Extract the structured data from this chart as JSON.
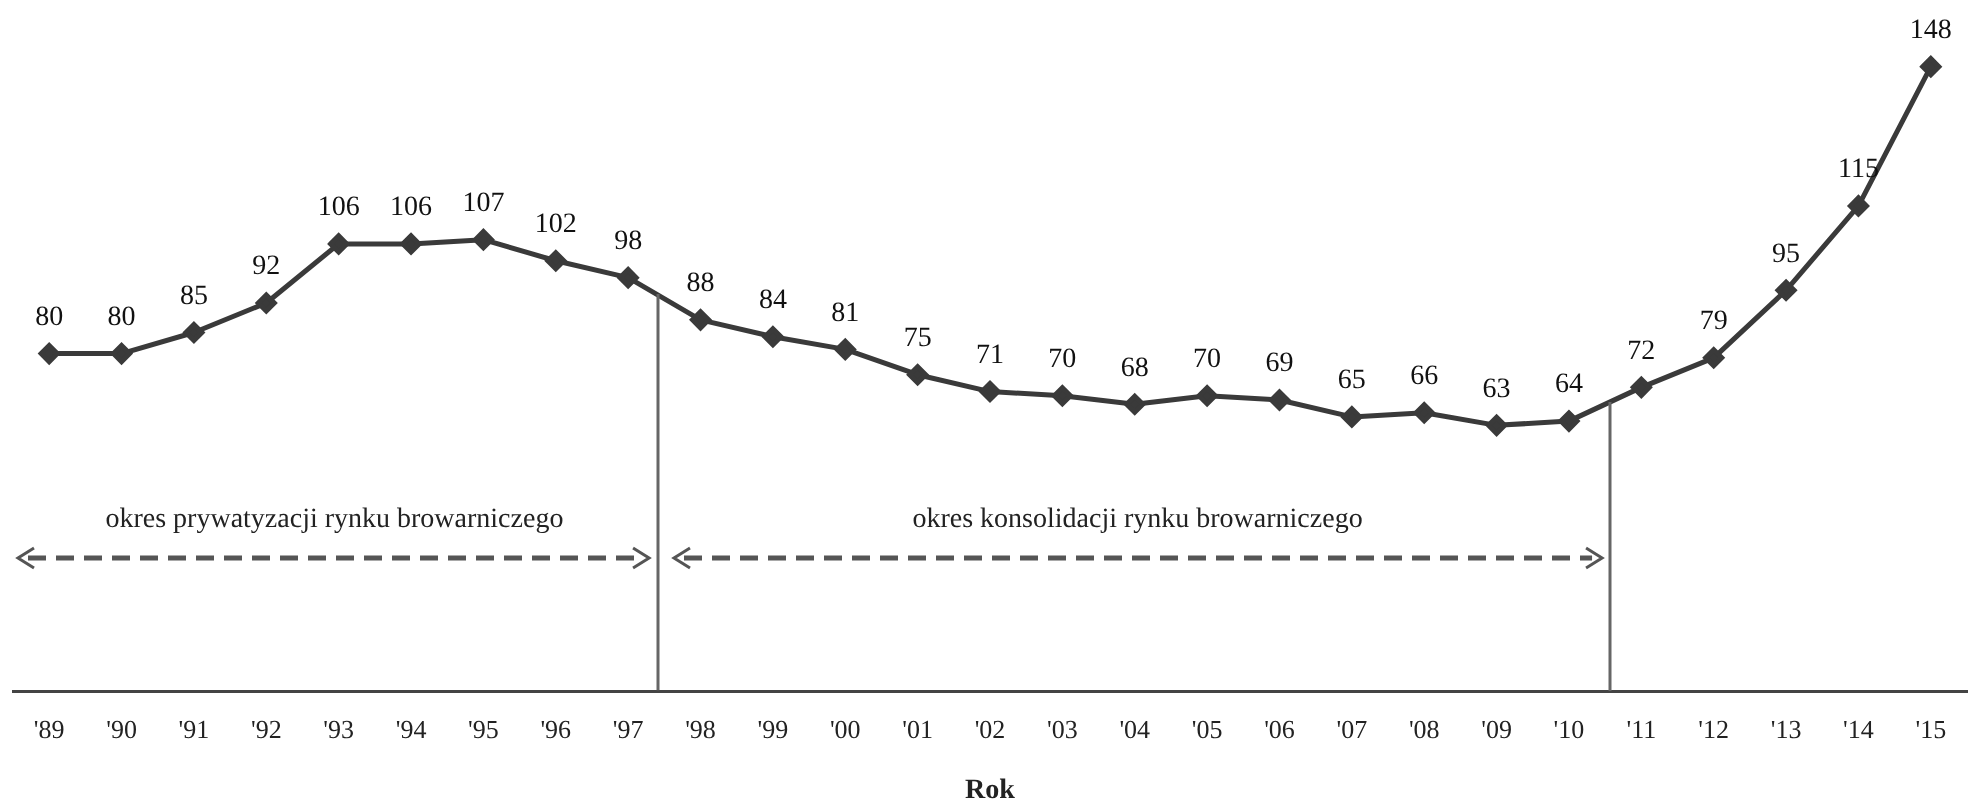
{
  "chart_data": {
    "type": "line",
    "xlabel": "Rok",
    "categories": [
      "'89",
      "'90",
      "'91",
      "'92",
      "'93",
      "'94",
      "'95",
      "'96",
      "'97",
      "'98",
      "'99",
      "'00",
      "'01",
      "'02",
      "'03",
      "'04",
      "'05",
      "'06",
      "'07",
      "'08",
      "'09",
      "'10",
      "'11",
      "'12",
      "'13",
      "'14",
      "'15"
    ],
    "series": [
      {
        "color": "#3a3a3a",
        "values": [
          80,
          80,
          85,
          92,
          106,
          106,
          107,
          102,
          98,
          88,
          84,
          81,
          75,
          71,
          70,
          68,
          70,
          69,
          65,
          66,
          63,
          64,
          72,
          79,
          95,
          115,
          148
        ]
      }
    ],
    "annotations": [
      "okres prywatyzacji rynku browarniczego",
      "okres konsolidacji rynku browarniczego"
    ],
    "data_labels": true,
    "grid": false,
    "legend": false,
    "marker": "diamond",
    "line_style": "solid",
    "tick_labels": "x"
  }
}
